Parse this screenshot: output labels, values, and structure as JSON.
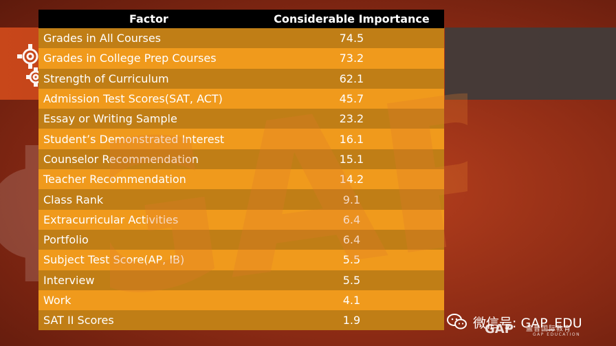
{
  "table": {
    "headers": [
      "Factor",
      "Considerable Importance"
    ],
    "rows": [
      {
        "factor": "Grades in All Courses",
        "value": "74.5"
      },
      {
        "factor": "Grades in College Prep Courses",
        "value": "73.2"
      },
      {
        "factor": "Strength of Curriculum",
        "value": "62.1"
      },
      {
        "factor": "Admission Test Scores(SAT, ACT)",
        "value": "45.7"
      },
      {
        "factor": "Essay or Writing Sample",
        "value": "23.2"
      },
      {
        "factor": "Student’s Demonstrated Interest",
        "value": "16.1"
      },
      {
        "factor": "Counselor Recommendation",
        "value": "15.1"
      },
      {
        "factor": "Teacher Recommendation",
        "value": "14.2"
      },
      {
        "factor": "Class Rank",
        "value": "9.1"
      },
      {
        "factor": "Extracurricular Activities",
        "value": "6.4"
      },
      {
        "factor": "Portfolio",
        "value": "6.4"
      },
      {
        "factor": "Subject Test Score(AP, IB)",
        "value": "5.5"
      },
      {
        "factor": "Interview",
        "value": "5.5"
      },
      {
        "factor": "Work",
        "value": "4.1"
      },
      {
        "factor": "SAT II Scores",
        "value": "1.9"
      }
    ]
  },
  "watermark_text": "GAP",
  "wechat_text": "微信号: GAP_EDU",
  "logo": {
    "brand": "GAP",
    "cn": "盖普国际教育",
    "en": "GAP EDUCATION"
  },
  "colors": {
    "header_bg": "#000000",
    "row_odd": "#c07e16",
    "row_even": "#f09a1c",
    "background": "#8a2a14"
  },
  "icons": {
    "gear": "gear-icon",
    "wechat": "wechat-icon"
  }
}
